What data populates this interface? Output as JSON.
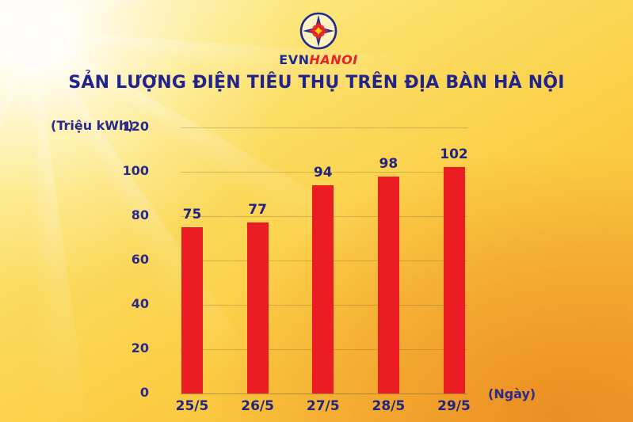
{
  "logo": {
    "evn": "EVN",
    "hanoi": "HANOI"
  },
  "chart_data": {
    "type": "bar",
    "title": "SẢN LƯỢNG ĐIỆN TIÊU THỤ TRÊN ĐỊA BÀN HÀ NỘI",
    "categories": [
      "25/5",
      "26/5",
      "27/5",
      "28/5",
      "29/5"
    ],
    "values": [
      75,
      77,
      94,
      98,
      102
    ],
    "ylabel": "(Triệu kWh)",
    "xlabel": "(Ngày)",
    "ylim": [
      0,
      120
    ],
    "yticks": [
      0,
      20,
      40,
      60,
      80,
      100,
      120
    ],
    "grid": true,
    "legend_position": "none",
    "bar_color": "#EB1C24",
    "label_color": "#232380",
    "title_color": "#23238C"
  },
  "colors": {
    "logo_blue": "#1E2B8F",
    "logo_red": "#E8232A",
    "logo_center_yellow": "#FFD200",
    "background_gold": "#FBCD43",
    "background_orange": "#EF8E2A"
  }
}
